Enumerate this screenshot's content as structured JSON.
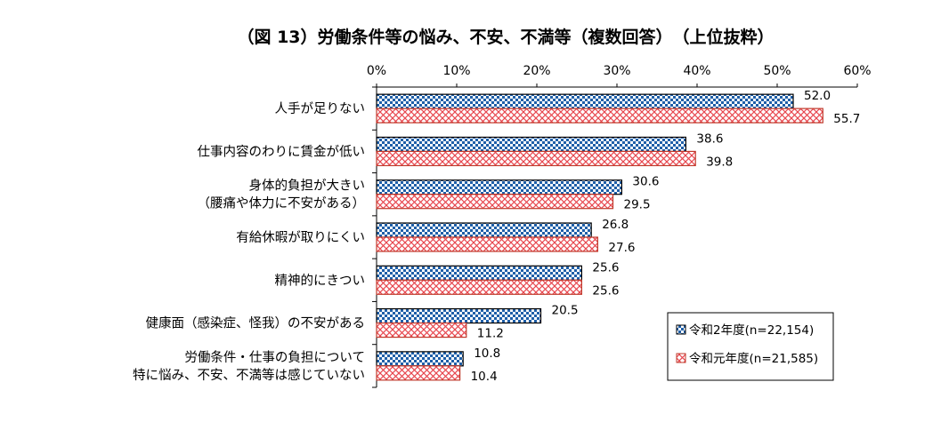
{
  "chart_data": {
    "type": "bar",
    "orientation": "horizontal",
    "title": "（図 13）労働条件等の悩み、不安、不満等（複数回答）　（上位抜粋）",
    "xlabel": "",
    "ylabel": "",
    "xlim": [
      0,
      60
    ],
    "xticks": [
      "0%",
      "10%",
      "20%",
      "30%",
      "40%",
      "50%",
      "60%"
    ],
    "grid": false,
    "legend_position": "bottom-right",
    "categories": [
      [
        "人手が足りない"
      ],
      [
        "仕事内容のわりに賃金が低い"
      ],
      [
        "身体的負担が大きい",
        "（腰痛や体力に不安がある）"
      ],
      [
        "有給休暇が取りにくい"
      ],
      [
        "精神的にきつい"
      ],
      [
        "健康面（感染症、怪我）の不安がある"
      ],
      [
        "労働条件・仕事の負担について",
        "特に悩み、不安、不満等は感じていない"
      ]
    ],
    "series": [
      {
        "name": "令和2年度(n=22,154)",
        "color": "#1f5fa8",
        "values": [
          52.0,
          38.6,
          30.6,
          26.8,
          25.6,
          20.5,
          10.8
        ],
        "labels": [
          "52.0",
          "38.6",
          "30.6",
          "26.8",
          "25.6",
          "20.5",
          "10.8"
        ]
      },
      {
        "name": "令和元年度(n=21,585)",
        "color": "#e8474f",
        "values": [
          55.7,
          39.8,
          29.5,
          27.6,
          25.6,
          11.2,
          10.4
        ],
        "labels": [
          "55.7",
          "39.8",
          "29.5",
          "27.6",
          "25.6",
          "11.2",
          "10.4"
        ]
      }
    ]
  }
}
